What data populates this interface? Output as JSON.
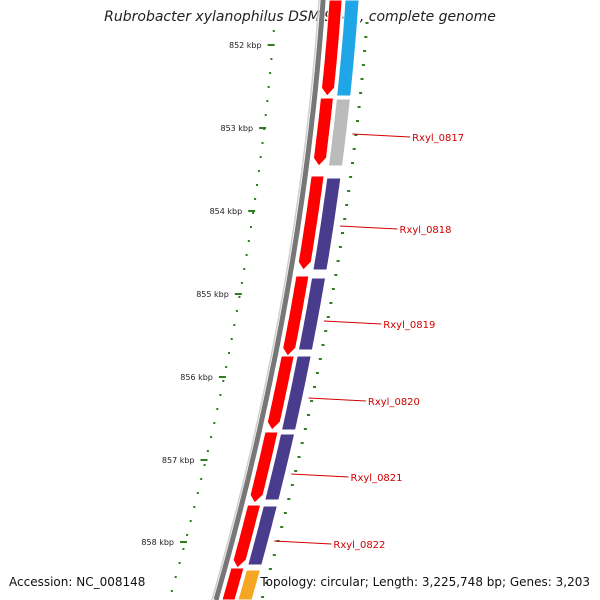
{
  "title": "Rubrobacter xylanophilus DSM 9941, complete genome",
  "footer": {
    "accession": "Accession: NC_008148",
    "topology": "Topology: circular; Length: 3,225,748 bp; Genes: 3,203"
  },
  "colors": {
    "backbone": "#777777",
    "cds": "#ff0000",
    "gene_purple": "#4a3c8c",
    "gene_cyan": "#1ea6e6",
    "gene_gray": "#bbbbbb",
    "gene_orange": "#f5a623",
    "tick": "#2e7d1e",
    "label": "#d10000"
  },
  "kbp_ticks": [
    "852 kbp",
    "853 kbp",
    "854 kbp",
    "855 kbp",
    "856 kbp",
    "857 kbp",
    "858 kbp"
  ],
  "genes": [
    {
      "label": "Rxyl_0817",
      "color": "gene_gray"
    },
    {
      "label": "Rxyl_0818",
      "color": "gene_purple"
    },
    {
      "label": "Rxyl_0819",
      "color": "gene_purple"
    },
    {
      "label": "Rxyl_0820",
      "color": "gene_purple"
    },
    {
      "label": "Rxyl_0821",
      "color": "gene_purple"
    },
    {
      "label": "Rxyl_0822",
      "color": "gene_purple"
    }
  ]
}
